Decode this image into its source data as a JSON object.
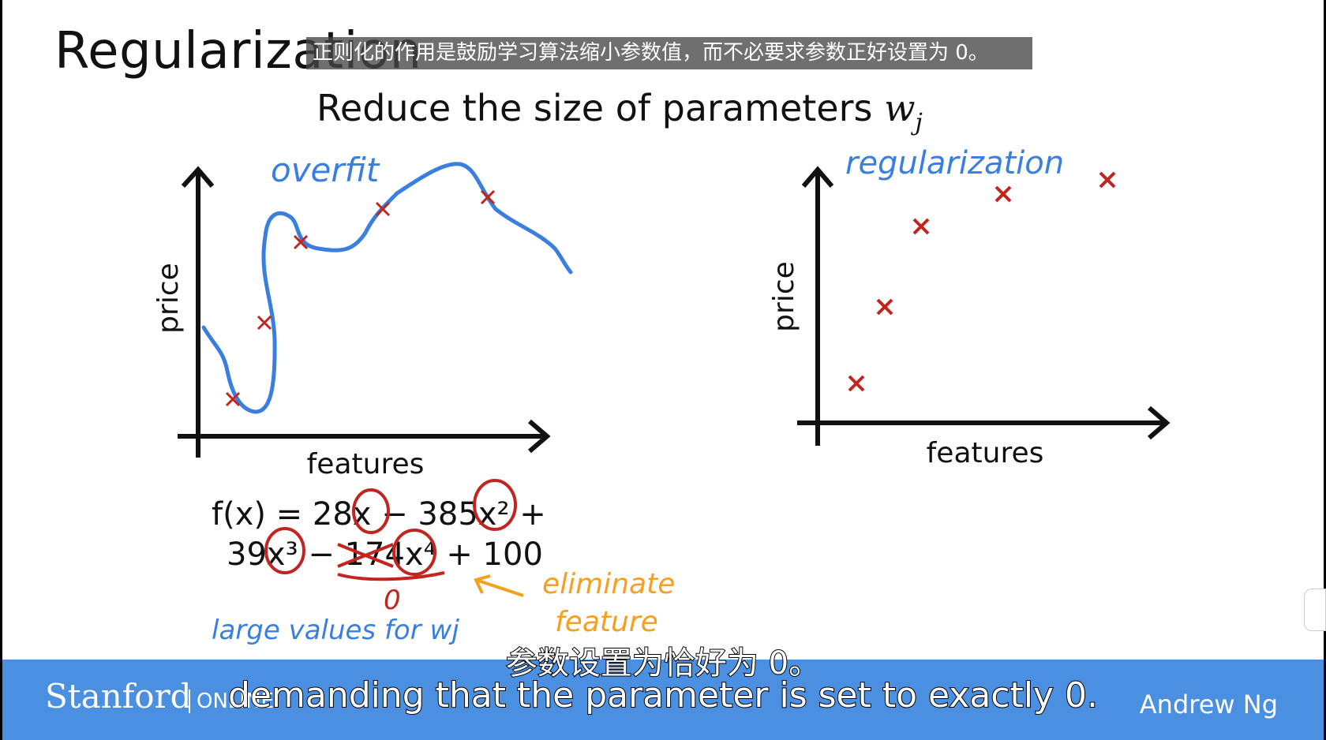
{
  "slide": {
    "title": "Regularization",
    "subtitle": "Reduce the size of parameters",
    "subtitle_symbol": "w",
    "subtitle_subscript": "j"
  },
  "caption_top": "正则化的作用是鼓励学习算法缩小参数值，而不必要求参数正好设置为 0。",
  "left_plot": {
    "annotation": "overfit",
    "ylabel": "price",
    "xlabel": "features",
    "chart_data": {
      "type": "scatter",
      "x": [
        1,
        2,
        3,
        4,
        5
      ],
      "y": [
        1,
        3,
        4,
        5,
        6
      ],
      "series": [
        {
          "name": "overfit curve",
          "kind": "line"
        }
      ]
    }
  },
  "right_plot": {
    "annotation": "regularization",
    "ylabel": "price",
    "xlabel": "features",
    "chart_data": {
      "type": "scatter",
      "x": [
        1,
        2,
        3,
        4,
        5
      ],
      "y": [
        1,
        3,
        4,
        5,
        6
      ]
    }
  },
  "equation": {
    "line1": "f(x) = 28x − 385x² +",
    "line2": "39x³ − 174x⁴ + 100"
  },
  "annotations": {
    "zero": "0",
    "large_values": "large values for wj",
    "eliminate": "eliminate",
    "feature": "feature"
  },
  "subtitles": {
    "zh": "参数设置为恰好为 0。",
    "en": "demanding that the parameter is set to exactly 0."
  },
  "footer": {
    "brand": "Stanford",
    "brand_suffix": "ONLINE",
    "author": "Andrew Ng"
  },
  "colors": {
    "curve": "#3a7fe0",
    "marker": "#c0251f",
    "accent_orange": "#f4a020",
    "footer": "#4a8fe0"
  }
}
